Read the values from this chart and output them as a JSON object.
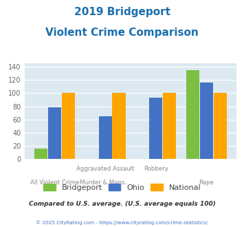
{
  "title_line1": "2019 Bridgeport",
  "title_line2": "Violent Crime Comparison",
  "bridgeport": [
    16,
    0,
    0,
    135
  ],
  "ohio": [
    78,
    65,
    93,
    116
  ],
  "national": [
    100,
    100,
    100,
    100
  ],
  "bar_color_bridgeport": "#7bc043",
  "bar_color_ohio": "#4472c4",
  "bar_color_national": "#ffa500",
  "ylim": [
    0,
    145
  ],
  "yticks": [
    0,
    20,
    40,
    60,
    80,
    100,
    120,
    140
  ],
  "title_color": "#1a6faf",
  "title_fontsize": 11,
  "bg_color": "#dce9f0",
  "note_text": "Compared to U.S. average. (U.S. average equals 100)",
  "note_color": "#333333",
  "footer_text": "© 2025 CityRating.com - https://www.cityrating.com/crime-statistics/",
  "footer_color": "#4472c4",
  "legend_labels": [
    "Bridgeport",
    "Ohio",
    "National"
  ],
  "x_top_labels": [
    "",
    "Aggravated Assault",
    "Robbery",
    ""
  ],
  "x_bot_labels": [
    "All Violent Crime",
    "Murder & Mans...",
    "",
    "Rape"
  ]
}
